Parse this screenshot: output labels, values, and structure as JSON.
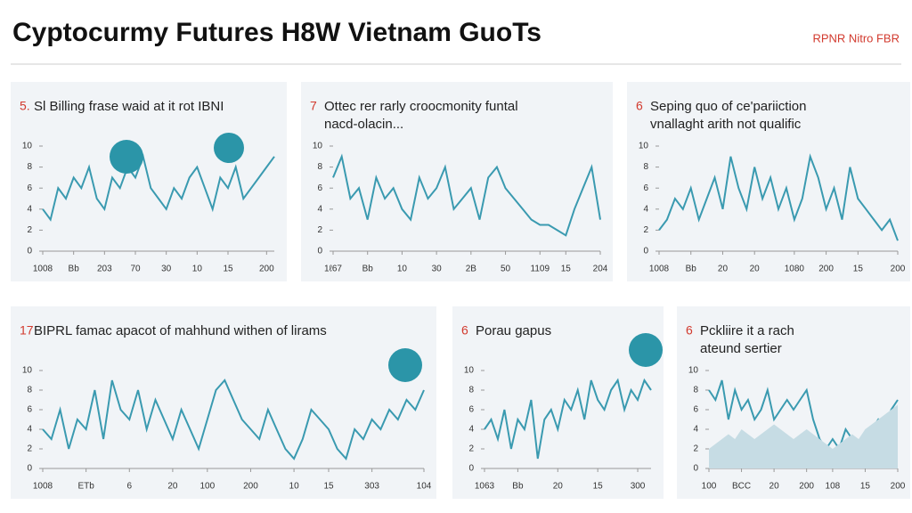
{
  "title": "Cyptocurmy Futures H8W Vietnam GuoTs",
  "badge": "RPNR Nitro FBR",
  "chart_data": [
    {
      "type": "line",
      "number": "5.",
      "title": [
        "Sl Billing frase waid at it rot IBNI"
      ],
      "ylim": [
        0,
        10
      ],
      "yticks": [
        0,
        2,
        4,
        6,
        8,
        10
      ],
      "xlim": [
        0,
        30
      ],
      "xticks": [
        {
          "value": 0,
          "label": "1008"
        },
        {
          "value": 4,
          "label": "Bb"
        },
        {
          "value": 8,
          "label": "203"
        },
        {
          "value": 12,
          "label": "70"
        },
        {
          "value": 16,
          "label": "30"
        },
        {
          "value": 20,
          "label": "10"
        },
        {
          "value": 24,
          "label": "15"
        },
        {
          "value": 29,
          "label": "200"
        }
      ],
      "series": [
        {
          "color": "#3a9ab0",
          "values": [
            4,
            3,
            6,
            5,
            7,
            6,
            8,
            5,
            4,
            7,
            6,
            8,
            7,
            9,
            6,
            5,
            4,
            6,
            5,
            7,
            8,
            6,
            4,
            7,
            6,
            8,
            5,
            6,
            7,
            8,
            9
          ]
        }
      ]
    },
    {
      "type": "line",
      "number": "7",
      "title": [
        "Otteс rer rarly croocmonity funtal",
        "nacd-olacin..."
      ],
      "ylim": [
        0,
        10
      ],
      "yticks": [
        0,
        2,
        4,
        6,
        8,
        10
      ],
      "xlim": [
        0,
        31
      ],
      "xticks": [
        {
          "value": 0,
          "label": "1ℓ67"
        },
        {
          "value": 4,
          "label": "Bb"
        },
        {
          "value": 8,
          "label": "10"
        },
        {
          "value": 12,
          "label": "30"
        },
        {
          "value": 16,
          "label": "2B"
        },
        {
          "value": 20,
          "label": "50"
        },
        {
          "value": 24,
          "label": "1109"
        },
        {
          "value": 27,
          "label": "15"
        },
        {
          "value": 31,
          "label": "204"
        }
      ],
      "series": [
        {
          "color": "#3a9ab0",
          "values": [
            7,
            9,
            5,
            6,
            3,
            7,
            5,
            6,
            4,
            3,
            7,
            5,
            6,
            8,
            4,
            5,
            6,
            3,
            7,
            8,
            6,
            5,
            4,
            3,
            2.5,
            2.5,
            2,
            1.5,
            4,
            6,
            8,
            3
          ]
        }
      ]
    },
    {
      "type": "line",
      "number": "6",
      "title": [
        "Seping quo of ce'pariiction",
        "vnallaght arith not qualific"
      ],
      "ylim": [
        0,
        10
      ],
      "yticks": [
        0,
        2,
        4,
        6,
        8,
        10
      ],
      "xlim": [
        0,
        30
      ],
      "xticks": [
        {
          "value": 0,
          "label": "1008"
        },
        {
          "value": 4,
          "label": "Bb"
        },
        {
          "value": 8,
          "label": "20"
        },
        {
          "value": 12,
          "label": "20"
        },
        {
          "value": 17,
          "label": "1080"
        },
        {
          "value": 21,
          "label": "200"
        },
        {
          "value": 25,
          "label": "15"
        },
        {
          "value": 30,
          "label": "200"
        }
      ],
      "series": [
        {
          "color": "#3a9ab0",
          "values": [
            2,
            3,
            5,
            4,
            6,
            3,
            5,
            7,
            4,
            9,
            6,
            4,
            8,
            5,
            7,
            4,
            6,
            3,
            5,
            9,
            7,
            4,
            6,
            3,
            8,
            5,
            4,
            3,
            2,
            3,
            1
          ]
        }
      ]
    },
    {
      "type": "line",
      "number": "17",
      "title": [
        "BIPRL famac apacot of mahhund withen of lirams"
      ],
      "ylim": [
        0,
        10
      ],
      "yticks": [
        0,
        2,
        4,
        6,
        8,
        10
      ],
      "xlim": [
        0,
        44
      ],
      "xticks": [
        {
          "value": 0,
          "label": "1008"
        },
        {
          "value": 5,
          "label": "ETb"
        },
        {
          "value": 10,
          "label": "6"
        },
        {
          "value": 15,
          "label": "20"
        },
        {
          "value": 19,
          "label": "100"
        },
        {
          "value": 24,
          "label": "200"
        },
        {
          "value": 29,
          "label": "10"
        },
        {
          "value": 33,
          "label": "15"
        },
        {
          "value": 38,
          "label": "303"
        },
        {
          "value": 44,
          "label": "104"
        }
      ],
      "series": [
        {
          "color": "#3a9ab0",
          "values": [
            4,
            3,
            6,
            2,
            5,
            4,
            8,
            3,
            9,
            6,
            5,
            8,
            4,
            7,
            5,
            3,
            6,
            4,
            2,
            5,
            8,
            9,
            7,
            5,
            4,
            3,
            6,
            4,
            2,
            1,
            3,
            6,
            5,
            4,
            2,
            1,
            4,
            3,
            5,
            4,
            6,
            5,
            7,
            6,
            8
          ]
        }
      ]
    },
    {
      "type": "line",
      "number": "6",
      "title": [
        "Porau gapus"
      ],
      "ylim": [
        0,
        10
      ],
      "yticks": [
        0,
        2,
        4,
        6,
        8,
        10
      ],
      "xlim": [
        0,
        25
      ],
      "xticks": [
        {
          "value": 0,
          "label": "1063"
        },
        {
          "value": 5,
          "label": "Bb"
        },
        {
          "value": 11,
          "label": "20"
        },
        {
          "value": 17,
          "label": "15"
        },
        {
          "value": 23,
          "label": "300"
        }
      ],
      "series": [
        {
          "color": "#3a9ab0",
          "values": [
            4,
            5,
            3,
            6,
            2,
            5,
            4,
            7,
            1,
            5,
            6,
            4,
            7,
            6,
            8,
            5,
            9,
            7,
            6,
            8,
            9,
            6,
            8,
            7,
            9,
            8
          ]
        }
      ]
    },
    {
      "type": "line",
      "number": "6",
      "title": [
        "Pckliire it a rach",
        "ateund sertier"
      ],
      "ylim": [
        0,
        10
      ],
      "yticks": [
        0,
        2,
        4,
        6,
        8,
        10
      ],
      "xlim": [
        0,
        29
      ],
      "xticks": [
        {
          "value": 0,
          "label": "100"
        },
        {
          "value": 5,
          "label": "BCC"
        },
        {
          "value": 10,
          "label": "20"
        },
        {
          "value": 15,
          "label": "200"
        },
        {
          "value": 19,
          "label": "108"
        },
        {
          "value": 24,
          "label": "15"
        },
        {
          "value": 29,
          "label": "200"
        }
      ],
      "series": [
        {
          "color": "#3a9ab0",
          "values": [
            8,
            7,
            9,
            5,
            8,
            6,
            7,
            5,
            6,
            8,
            5,
            6,
            7,
            6,
            7,
            8,
            5,
            3,
            2,
            3,
            2,
            4,
            3,
            2,
            3,
            4,
            5,
            4,
            6,
            7
          ]
        },
        {
          "color": "#c6dce4",
          "style": "area",
          "values": [
            2,
            2.5,
            3,
            3.5,
            3,
            4,
            3.5,
            3,
            3.5,
            4,
            4.5,
            4,
            3.5,
            3,
            3.5,
            4,
            3.5,
            3,
            2.5,
            2,
            2.5,
            3,
            3.5,
            3,
            4,
            4.5,
            5,
            5.5,
            6,
            6.5
          ]
        }
      ]
    }
  ]
}
